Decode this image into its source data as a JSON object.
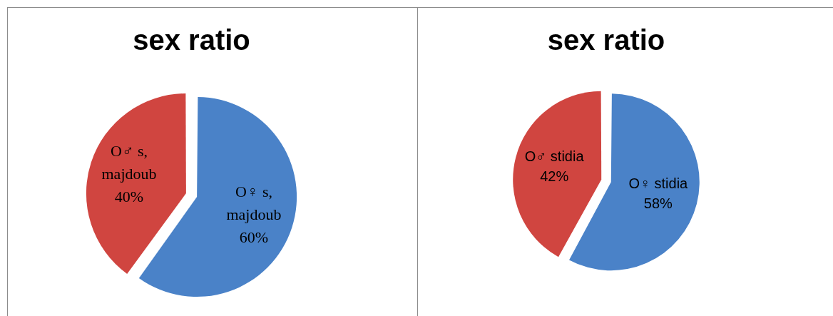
{
  "chart_data": [
    {
      "type": "pie",
      "title": "sex ratio",
      "categories": [
        "O♀ s, majdoub",
        "O♂ s, majdoub"
      ],
      "values": [
        60,
        40
      ],
      "colors": [
        "#4a82c8",
        "#d04540"
      ],
      "value_labels": [
        "60%",
        "40%"
      ]
    },
    {
      "type": "pie",
      "title": "sex ratio",
      "categories": [
        "O♀ stidia",
        "O♂ stidia"
      ],
      "values": [
        58,
        42
      ],
      "colors": [
        "#4a82c8",
        "#d04540"
      ],
      "value_labels": [
        "58%",
        "42%"
      ]
    }
  ]
}
